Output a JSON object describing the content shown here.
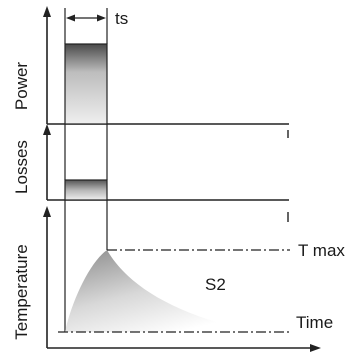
{
  "labels": {
    "power": "Power",
    "losses": "Losses",
    "temperature": "Temperature",
    "ts": "ts",
    "tmax": "T max",
    "s2": "S2",
    "time": "Time"
  }
}
